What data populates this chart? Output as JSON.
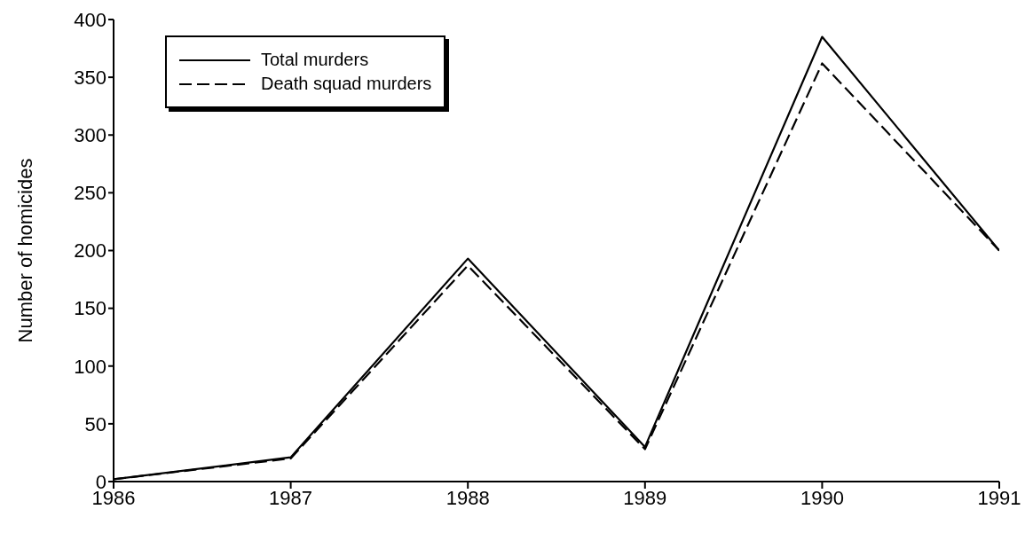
{
  "chart_data": {
    "type": "line",
    "ylabel": "Number of homicides",
    "x": [
      1986,
      1987,
      1988,
      1989,
      1990,
      1991
    ],
    "series": [
      {
        "name": "Total murders",
        "color": "#000000",
        "line_style": "solid",
        "values": [
          2,
          21,
          193,
          30,
          385,
          200
        ]
      },
      {
        "name": "Death squad murders",
        "color": "#000000",
        "line_style": "dashed",
        "values": [
          2,
          20,
          187,
          28,
          362,
          200
        ]
      }
    ],
    "xlim": [
      1986,
      1991
    ],
    "xticks": [
      1986,
      1987,
      1988,
      1989,
      1990,
      1991
    ],
    "ylim": [
      0,
      400
    ],
    "yticks": [
      0,
      50,
      100,
      150,
      200,
      250,
      300,
      350,
      400
    ],
    "grid": false,
    "legend": "top left",
    "marker": "none"
  }
}
